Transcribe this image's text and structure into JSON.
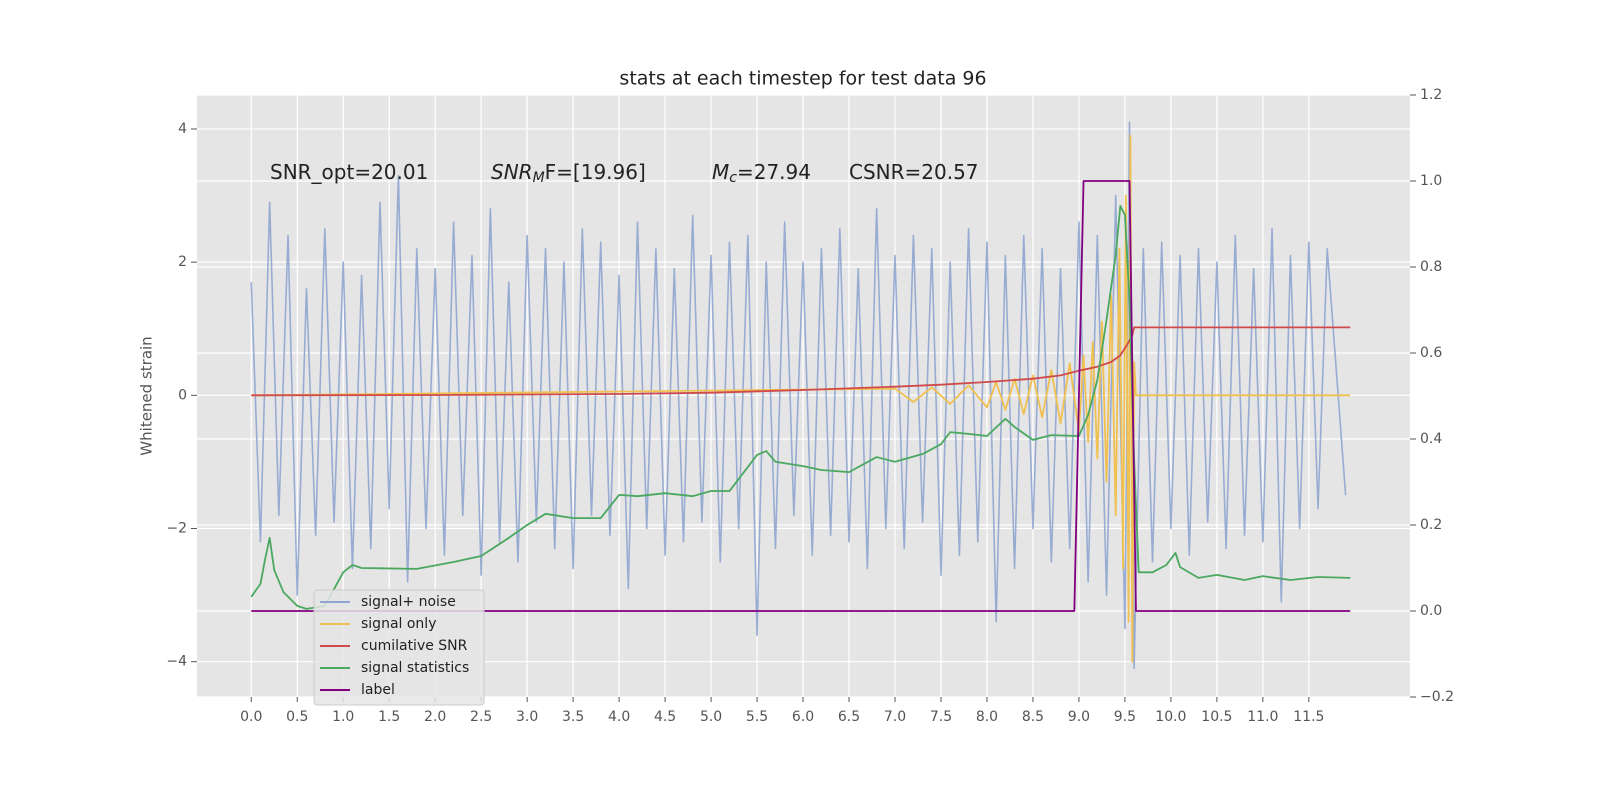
{
  "chart_data": {
    "type": "line",
    "title": "stats at each timestep for test data 96",
    "ylabel": "Whitened strain",
    "xlim": [
      -0.59,
      12.6
    ],
    "ylim": [
      -4.53,
      4.51
    ],
    "y2lim": [
      -0.2,
      1.2
    ],
    "grid": true,
    "legend": "lower left",
    "xticks": [
      {
        "value": 0,
        "label": "0.0"
      },
      0.5,
      {
        "value": 1,
        "label": "1.0"
      },
      1.5,
      {
        "value": 2,
        "label": "2.0"
      },
      2.5,
      {
        "value": 3,
        "label": "3.0"
      },
      3.5,
      {
        "value": 4,
        "label": "4.0"
      },
      4.5,
      {
        "value": 5,
        "label": "5.0"
      },
      5.5,
      {
        "value": 6,
        "label": "6.0"
      },
      6.5,
      {
        "value": 7,
        "label": "7.0"
      },
      7.5,
      {
        "value": 8,
        "label": "8.0"
      },
      8.5,
      {
        "value": 9,
        "label": "9.0"
      },
      9.5,
      {
        "value": 10,
        "label": "10.0"
      },
      10.5,
      {
        "value": 11,
        "label": "11.0"
      },
      11.5
    ],
    "yticks": [
      {
        "value": -4,
        "label": "−4"
      },
      {
        "value": -2,
        "label": "−2"
      },
      0,
      2,
      4
    ],
    "y2ticks": [
      {
        "value": -0.2,
        "label": "−0.2"
      },
      {
        "value": 0,
        "label": "0.0"
      },
      0.2,
      0.4,
      0.6,
      0.8,
      {
        "value": 1,
        "label": "1.0"
      },
      1.2
    ],
    "annotations": [
      {
        "text": "SNR_opt=20.01"
      },
      {
        "math": "SNR",
        "sub": "M",
        "text": "F=[19.96]"
      },
      {
        "math": "M",
        "sub": "c",
        "text": "=27.94"
      },
      {
        "text": "CSNR=20.57"
      }
    ],
    "series": [
      {
        "name": "signal+ noise",
        "color": "#8fa5cf",
        "x": [
          0.0,
          0.1,
          0.2,
          0.3,
          0.4,
          0.5,
          0.6,
          0.7,
          0.8,
          0.9,
          1.0,
          1.1,
          1.2,
          1.3,
          1.4,
          1.5,
          1.6,
          1.7,
          1.8,
          1.9,
          2.0,
          2.1,
          2.2,
          2.3,
          2.4,
          2.5,
          2.6,
          2.7,
          2.8,
          2.9,
          3.0,
          3.1,
          3.2,
          3.3,
          3.4,
          3.5,
          3.6,
          3.7,
          3.8,
          3.9,
          4.0,
          4.1,
          4.2,
          4.3,
          4.4,
          4.5,
          4.6,
          4.7,
          4.8,
          4.9,
          5.0,
          5.1,
          5.2,
          5.3,
          5.4,
          5.5,
          5.6,
          5.7,
          5.8,
          5.9,
          6.0,
          6.1,
          6.2,
          6.3,
          6.4,
          6.5,
          6.6,
          6.7,
          6.8,
          6.9,
          7.0,
          7.1,
          7.2,
          7.3,
          7.4,
          7.5,
          7.6,
          7.7,
          7.8,
          7.9,
          8.0,
          8.1,
          8.2,
          8.3,
          8.4,
          8.5,
          8.6,
          8.7,
          8.8,
          8.9,
          9.0,
          9.1,
          9.2,
          9.3,
          9.4,
          9.5,
          9.55,
          9.6,
          9.7,
          9.8,
          9.9,
          10.0,
          10.1,
          10.2,
          10.3,
          10.4,
          10.5,
          10.6,
          10.7,
          10.8,
          10.9,
          11.0,
          11.1,
          11.2,
          11.3,
          11.4,
          11.5,
          11.6,
          11.7,
          11.9
        ],
        "values": [
          1.7,
          -2.2,
          2.9,
          -1.8,
          2.4,
          -3.0,
          1.6,
          -2.1,
          2.5,
          -1.9,
          2.0,
          -2.6,
          1.8,
          -2.3,
          2.9,
          -1.7,
          3.3,
          -2.8,
          2.2,
          -2.0,
          1.9,
          -2.4,
          2.6,
          -1.8,
          2.1,
          -2.7,
          2.8,
          -2.2,
          1.7,
          -2.5,
          2.4,
          -1.9,
          2.2,
          -2.3,
          2.0,
          -2.6,
          2.5,
          -1.8,
          2.3,
          -2.1,
          1.8,
          -2.9,
          2.6,
          -2.0,
          2.2,
          -2.4,
          1.9,
          -2.2,
          2.7,
          -1.9,
          2.1,
          -2.5,
          2.3,
          -2.0,
          2.4,
          -3.6,
          2.0,
          -2.3,
          2.6,
          -1.8,
          2.0,
          -2.4,
          2.2,
          -2.1,
          2.5,
          -2.2,
          1.9,
          -2.6,
          2.8,
          -2.0,
          2.1,
          -2.3,
          2.4,
          -1.9,
          2.2,
          -2.7,
          2.0,
          -2.4,
          2.5,
          -2.2,
          2.3,
          -3.4,
          2.1,
          -2.6,
          2.4,
          -2.0,
          2.2,
          -2.5,
          1.9,
          -2.3,
          2.6,
          -2.8,
          2.4,
          -3.0,
          3.0,
          -3.5,
          4.1,
          -4.1,
          2.2,
          -2.5,
          2.3,
          -2.0,
          2.1,
          -2.4,
          2.2,
          -1.9,
          2.0,
          -2.3,
          2.4,
          -2.1,
          1.9,
          -2.2,
          2.5,
          -3.1,
          2.1,
          -2.0,
          2.3,
          -1.7,
          2.2,
          -1.5
        ]
      },
      {
        "name": "signal only",
        "color": "#f0c050",
        "x": [
          0,
          7.0,
          7.2,
          7.4,
          7.6,
          7.8,
          8.0,
          8.1,
          8.2,
          8.3,
          8.4,
          8.5,
          8.6,
          8.7,
          8.8,
          8.9,
          9.0,
          9.05,
          9.1,
          9.15,
          9.2,
          9.25,
          9.3,
          9.35,
          9.4,
          9.44,
          9.48,
          9.51,
          9.54,
          9.56,
          9.58,
          9.6,
          9.62,
          11.95
        ],
        "values": [
          0,
          0.1,
          -0.1,
          0.12,
          -0.13,
          0.15,
          -0.18,
          0.2,
          -0.22,
          0.25,
          -0.28,
          0.3,
          -0.33,
          0.38,
          -0.42,
          0.48,
          -0.55,
          0.6,
          -0.7,
          0.8,
          -0.95,
          1.1,
          -1.3,
          1.5,
          -1.8,
          2.2,
          -2.6,
          3.0,
          -3.4,
          3.9,
          -4.0,
          0.5,
          0,
          0
        ]
      },
      {
        "name": "cumilative SNR",
        "color": "#d04a4a",
        "x": [
          0,
          2,
          4,
          5,
          6,
          7,
          7.5,
          8,
          8.5,
          8.8,
          9.0,
          9.2,
          9.35,
          9.45,
          9.52,
          9.58,
          9.6,
          9.62,
          11.95
        ],
        "values": [
          0,
          0.005,
          0.02,
          0.04,
          0.08,
          0.13,
          0.16,
          0.2,
          0.25,
          0.3,
          0.37,
          0.43,
          0.5,
          0.6,
          0.75,
          0.9,
          1.02,
          1.02,
          1.02
        ]
      },
      {
        "name": "signal statistics",
        "color": "#4aa860",
        "axis": "y2",
        "x": [
          0.0,
          0.1,
          0.15,
          0.2,
          0.25,
          0.35,
          0.5,
          0.6,
          0.8,
          1.0,
          1.1,
          1.2,
          1.8,
          2.2,
          2.5,
          2.8,
          3.0,
          3.2,
          3.5,
          3.8,
          4.0,
          4.2,
          4.5,
          4.8,
          5.0,
          5.2,
          5.5,
          5.6,
          5.7,
          6.0,
          6.2,
          6.5,
          6.8,
          7.0,
          7.3,
          7.5,
          7.6,
          7.8,
          8.0,
          8.2,
          8.3,
          8.5,
          8.7,
          9.0,
          9.1,
          9.2,
          9.3,
          9.4,
          9.45,
          9.5,
          9.55,
          9.6,
          9.65,
          9.8,
          9.95,
          10.05,
          10.1,
          10.3,
          10.5,
          10.8,
          11.0,
          11.3,
          11.6,
          11.95
        ],
        "values": [
          0.033,
          0.063,
          0.12,
          0.17,
          0.095,
          0.044,
          0.012,
          0.005,
          0.012,
          0.09,
          0.107,
          0.1,
          0.098,
          0.114,
          0.128,
          0.17,
          0.2,
          0.226,
          0.216,
          0.216,
          0.27,
          0.267,
          0.274,
          0.267,
          0.279,
          0.279,
          0.363,
          0.372,
          0.347,
          0.337,
          0.328,
          0.323,
          0.358,
          0.347,
          0.365,
          0.388,
          0.416,
          0.412,
          0.407,
          0.447,
          0.428,
          0.398,
          0.409,
          0.407,
          0.456,
          0.537,
          0.677,
          0.828,
          0.942,
          0.921,
          0.723,
          0.351,
          0.09,
          0.09,
          0.107,
          0.135,
          0.102,
          0.077,
          0.084,
          0.072,
          0.081,
          0.072,
          0.079,
          0.077
        ]
      },
      {
        "name": "label",
        "color": "#800080",
        "axis": "y2",
        "x": [
          0,
          8.95,
          9.05,
          9.55,
          9.62,
          11.95
        ],
        "values": [
          0,
          0,
          1,
          1,
          0,
          0
        ]
      }
    ]
  }
}
